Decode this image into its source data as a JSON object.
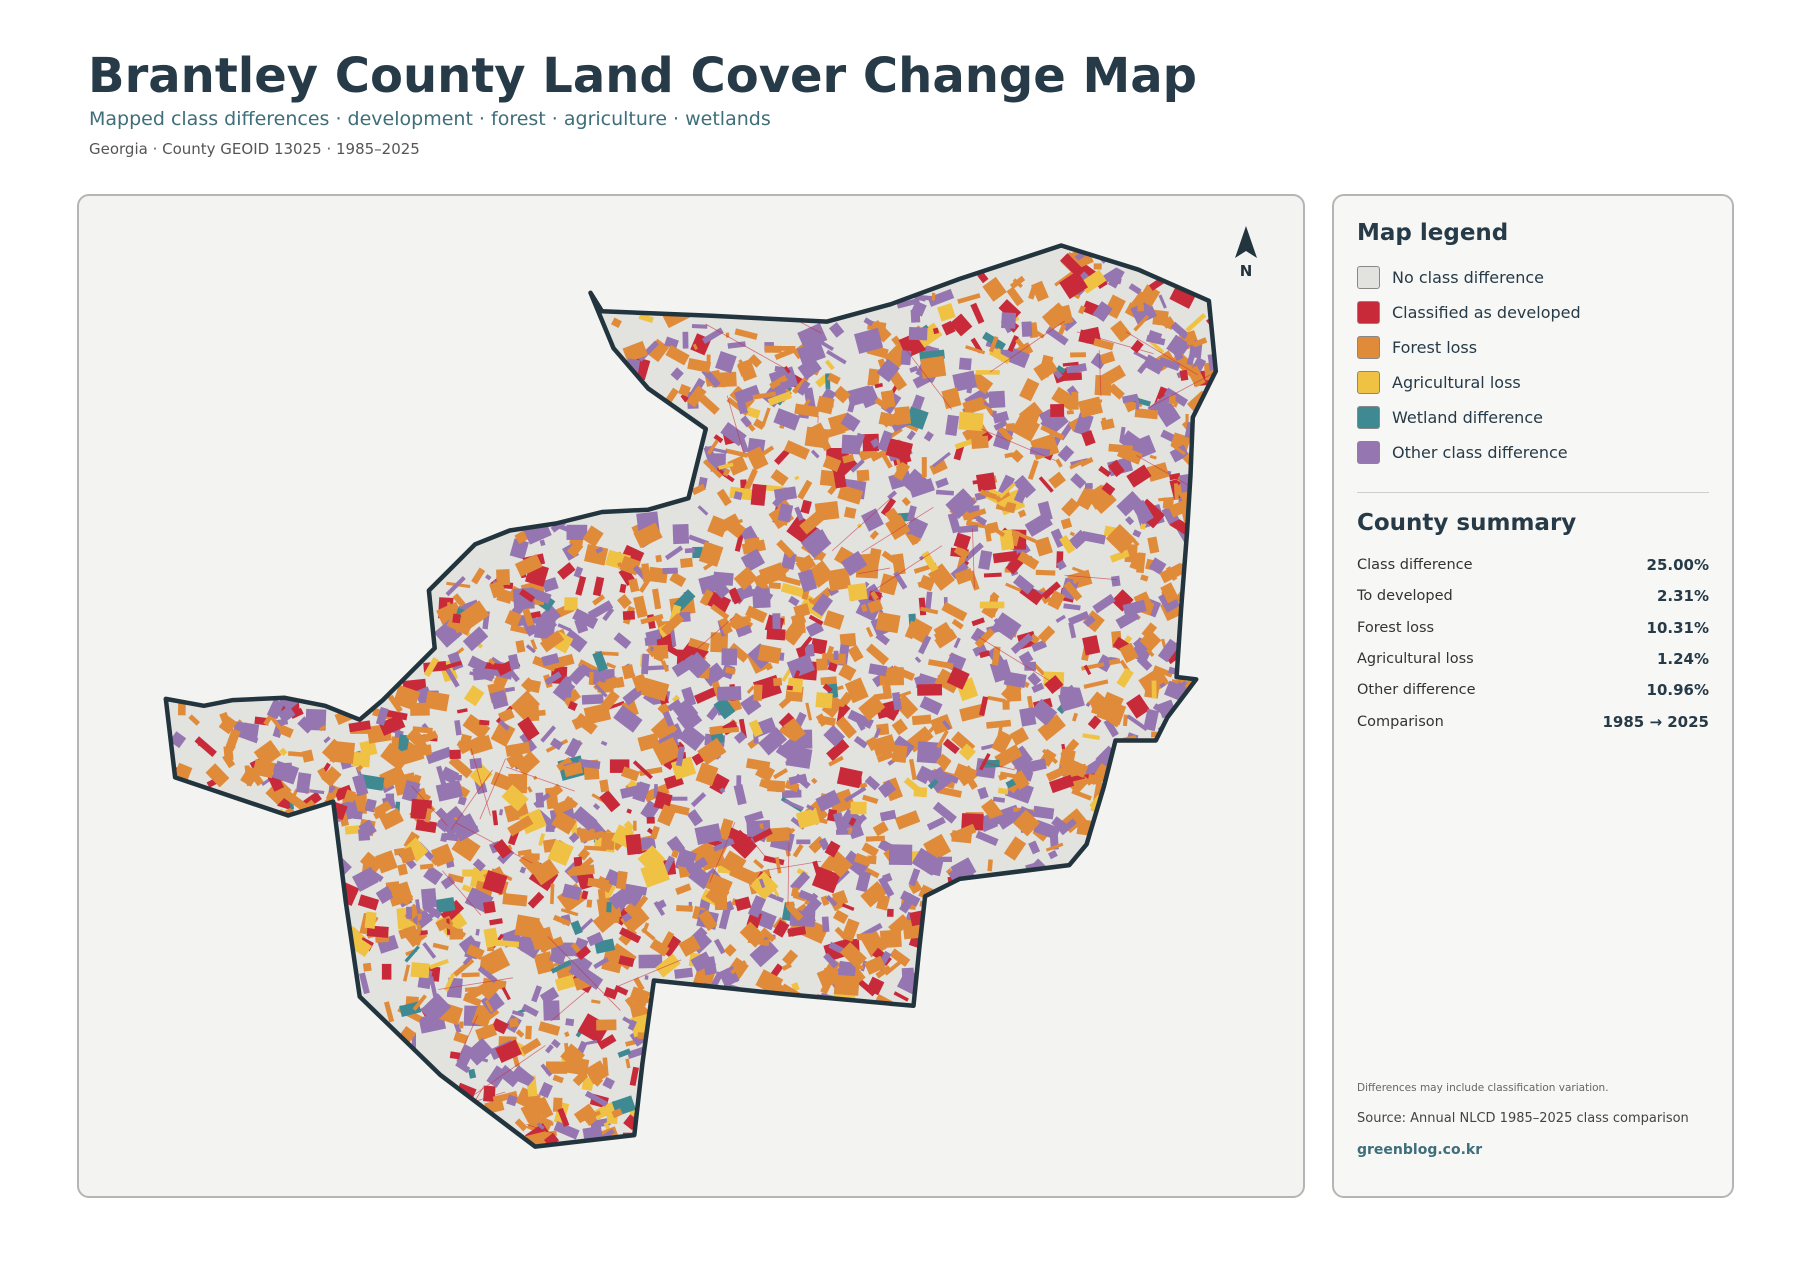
{
  "header": {
    "title": "Brantley County Land Cover Change Map",
    "subtitle": "Mapped class differences · development · forest · agriculture · wetlands",
    "meta": "Georgia · County GEOID 13025 · 1985–2025"
  },
  "map": {
    "north_label": "N"
  },
  "legend": {
    "title": "Map legend",
    "items": [
      {
        "label": "No class difference",
        "color": "#e2e2df"
      },
      {
        "label": "Classified as developed",
        "color": "#c82a3a"
      },
      {
        "label": "Forest loss",
        "color": "#e08b3a"
      },
      {
        "label": "Agricultural loss",
        "color": "#f0c244"
      },
      {
        "label": "Wetland difference",
        "color": "#3f8a92"
      },
      {
        "label": "Other class difference",
        "color": "#9576b0"
      }
    ]
  },
  "summary": {
    "title": "County summary",
    "rows": [
      {
        "label": "Class difference",
        "value": "25.00%"
      },
      {
        "label": "To developed",
        "value": "2.31%"
      },
      {
        "label": "Forest loss",
        "value": "10.31%"
      },
      {
        "label": "Agricultural loss",
        "value": "1.24%"
      },
      {
        "label": "Other difference",
        "value": "10.96%"
      },
      {
        "label": "Comparison",
        "value": "1985 → 2025"
      }
    ]
  },
  "footer": {
    "note": "Differences may include classification variation.",
    "source": "Source: Annual NLCD 1985–2025 class comparison",
    "credit": "greenblog.co.kr"
  }
}
